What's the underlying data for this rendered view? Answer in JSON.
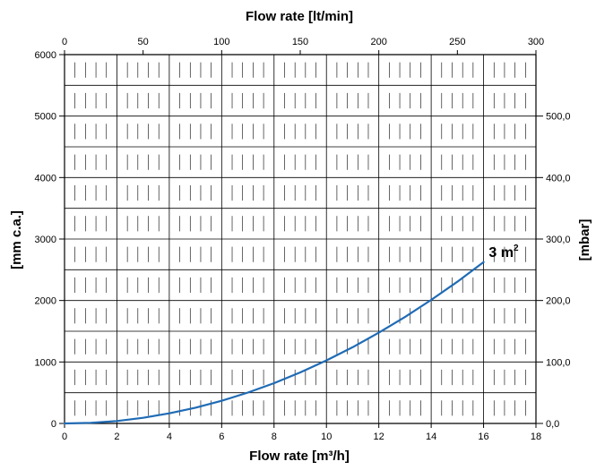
{
  "chart_data": {
    "type": "line",
    "title": "",
    "xlabel_bottom": "Flow rate [m³/h]",
    "xlabel_top": "Flow rate [lt/min]",
    "ylabel_left": "[mm c.a.]",
    "ylabel_right": "[mbar]",
    "xlim": [
      0,
      18
    ],
    "ylim": [
      0,
      6000
    ],
    "xlim_top": [
      0,
      300
    ],
    "ylim_right": [
      0,
      600
    ],
    "x_ticks": [
      "0",
      "2",
      "4",
      "6",
      "8",
      "10",
      "12",
      "14",
      "16",
      "18"
    ],
    "x_top_ticks": [
      "0",
      "50",
      "100",
      "150",
      "200",
      "250",
      "300"
    ],
    "y_ticks": [
      "0",
      "1000",
      "2000",
      "3000",
      "4000",
      "5000",
      "6000"
    ],
    "y_right_ticks": [
      "0,0",
      "100,0",
      "200,0",
      "300,0",
      "400,0",
      "500,0"
    ],
    "grid": true,
    "series": [
      {
        "name": "3 m²",
        "color": "#1f6bb5",
        "x": [
          0,
          1,
          2,
          3,
          4,
          5,
          6,
          7,
          8,
          9,
          10,
          11,
          12,
          13,
          14,
          15,
          16
        ],
        "y": [
          0,
          10,
          40,
          92,
          164,
          256,
          369,
          502,
          656,
          830,
          1025,
          1240,
          1476,
          1732,
          2009,
          2306,
          2624
        ]
      }
    ],
    "annotations": [
      {
        "text": "3 m",
        "sup": "2",
        "x": 16.2,
        "y": 2624
      }
    ]
  }
}
